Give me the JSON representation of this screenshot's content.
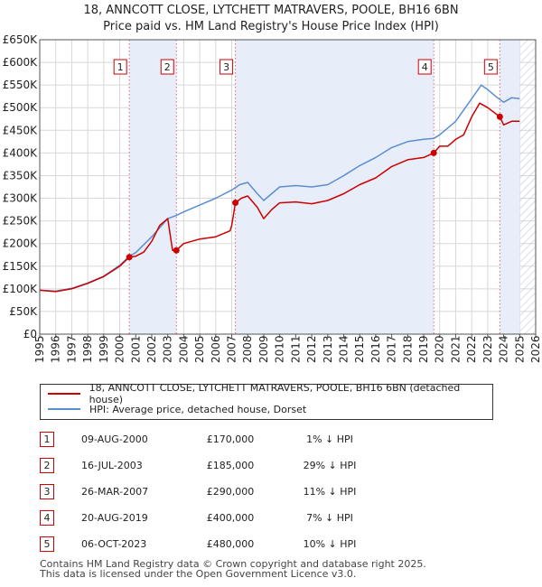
{
  "title": "18, ANNCOTT CLOSE, LYTCHETT MATRAVERS, POOLE, BH16 6BN",
  "subtitle": "Price paid vs. HM Land Registry's House Price Index (HPI)",
  "colors": {
    "property": "#cc0000",
    "hpi": "#5b8ed0",
    "shade": "#e8eef9",
    "grid": "#d8d8d8",
    "marker_line": "#e06080"
  },
  "chart_data": {
    "type": "line",
    "title": "18, ANNCOTT CLOSE, LYTCHETT MATRAVERS, POOLE, BH16 6BN",
    "subtitle": "Price paid vs. HM Land Registry's House Price Index (HPI)",
    "xlabel": "",
    "ylabel": "",
    "xlim": [
      1995,
      2026
    ],
    "ylim": [
      0,
      650000
    ],
    "y_ticks": [
      0,
      50000,
      100000,
      150000,
      200000,
      250000,
      300000,
      350000,
      400000,
      450000,
      500000,
      550000,
      600000,
      650000
    ],
    "y_tick_labels": [
      "£0",
      "£50K",
      "£100K",
      "£150K",
      "£200K",
      "£250K",
      "£300K",
      "£350K",
      "£400K",
      "£450K",
      "£500K",
      "£550K",
      "£600K",
      "£650K"
    ],
    "x_ticks": [
      1995,
      1996,
      1997,
      1998,
      1999,
      2000,
      2001,
      2002,
      2003,
      2004,
      2005,
      2006,
      2007,
      2008,
      2009,
      2010,
      2011,
      2012,
      2013,
      2014,
      2015,
      2016,
      2017,
      2018,
      2019,
      2020,
      2021,
      2022,
      2023,
      2024,
      2025,
      2026
    ],
    "x_tick_labels": [
      "1995",
      "1996",
      "1997",
      "1998",
      "1999",
      "2000",
      "2001",
      "2002",
      "2003",
      "2004",
      "2005",
      "2006",
      "2007",
      "2008",
      "2009",
      "2010",
      "2011",
      "2012",
      "2013",
      "2014",
      "2015",
      "2016",
      "2017",
      "2018",
      "2019",
      "2020",
      "2021",
      "2022",
      "2023",
      "2024",
      "2025",
      "2026"
    ],
    "grid": true,
    "shaded_spans": [
      [
        2000.6,
        2003.54
      ],
      [
        2007.23,
        2019.63
      ],
      [
        2023.76,
        2025.0
      ]
    ],
    "hatched_after": 2025.0,
    "series": [
      {
        "name": "18, ANNCOTT CLOSE, LYTCHETT MATRAVERS, POOLE, BH16 6BN (detached house)",
        "color": "#cc0000",
        "points": [
          [
            1995.0,
            97000
          ],
          [
            1996.0,
            94000
          ],
          [
            1997.0,
            100000
          ],
          [
            1998.0,
            112000
          ],
          [
            1999.0,
            127000
          ],
          [
            2000.0,
            150000
          ],
          [
            2000.6,
            170000
          ],
          [
            2001.0,
            172000
          ],
          [
            2001.5,
            181000
          ],
          [
            2002.0,
            205000
          ],
          [
            2002.5,
            240000
          ],
          [
            2003.0,
            255000
          ],
          [
            2003.3,
            185000
          ],
          [
            2003.54,
            185000
          ],
          [
            2004.0,
            200000
          ],
          [
            2005.0,
            210000
          ],
          [
            2006.0,
            215000
          ],
          [
            2006.9,
            228000
          ],
          [
            2007.0,
            240000
          ],
          [
            2007.23,
            290000
          ],
          [
            2007.6,
            300000
          ],
          [
            2008.0,
            305000
          ],
          [
            2008.6,
            280000
          ],
          [
            2009.0,
            255000
          ],
          [
            2009.5,
            275000
          ],
          [
            2010.0,
            290000
          ],
          [
            2011.0,
            292000
          ],
          [
            2012.0,
            288000
          ],
          [
            2013.0,
            295000
          ],
          [
            2014.0,
            310000
          ],
          [
            2015.0,
            330000
          ],
          [
            2016.0,
            345000
          ],
          [
            2017.0,
            370000
          ],
          [
            2018.0,
            385000
          ],
          [
            2019.0,
            390000
          ],
          [
            2019.63,
            400000
          ],
          [
            2020.0,
            415000
          ],
          [
            2020.5,
            415000
          ],
          [
            2021.0,
            430000
          ],
          [
            2021.5,
            440000
          ],
          [
            2022.0,
            480000
          ],
          [
            2022.5,
            510000
          ],
          [
            2023.0,
            500000
          ],
          [
            2023.76,
            480000
          ],
          [
            2024.0,
            462000
          ],
          [
            2024.5,
            470000
          ],
          [
            2025.0,
            470000
          ]
        ]
      },
      {
        "name": "HPI: Average price, detached house, Dorset",
        "color": "#5b8ed0",
        "points": [
          [
            1995.0,
            97000
          ],
          [
            1996.0,
            95000
          ],
          [
            1997.0,
            101000
          ],
          [
            1998.0,
            113000
          ],
          [
            1999.0,
            128000
          ],
          [
            2000.0,
            152000
          ],
          [
            2000.6,
            172000
          ],
          [
            2001.0,
            180000
          ],
          [
            2002.0,
            215000
          ],
          [
            2003.0,
            255000
          ],
          [
            2003.54,
            262000
          ],
          [
            2004.0,
            270000
          ],
          [
            2005.0,
            285000
          ],
          [
            2006.0,
            300000
          ],
          [
            2007.0,
            318000
          ],
          [
            2007.5,
            330000
          ],
          [
            2008.0,
            335000
          ],
          [
            2008.6,
            310000
          ],
          [
            2009.0,
            295000
          ],
          [
            2010.0,
            325000
          ],
          [
            2011.0,
            328000
          ],
          [
            2012.0,
            325000
          ],
          [
            2013.0,
            330000
          ],
          [
            2014.0,
            350000
          ],
          [
            2015.0,
            372000
          ],
          [
            2016.0,
            390000
          ],
          [
            2017.0,
            412000
          ],
          [
            2018.0,
            425000
          ],
          [
            2019.0,
            430000
          ],
          [
            2019.63,
            432000
          ],
          [
            2020.0,
            440000
          ],
          [
            2021.0,
            470000
          ],
          [
            2022.0,
            520000
          ],
          [
            2022.6,
            550000
          ],
          [
            2023.0,
            540000
          ],
          [
            2023.5,
            525000
          ],
          [
            2024.0,
            512000
          ],
          [
            2024.5,
            522000
          ],
          [
            2025.0,
            520000
          ]
        ]
      }
    ],
    "sales": [
      {
        "label": "1",
        "x": 2000.6,
        "price": 170000,
        "date": "09-AUG-2000",
        "price_text": "£170,000",
        "hpi_text": "1% ↓ HPI"
      },
      {
        "label": "2",
        "x": 2003.54,
        "price": 185000,
        "date": "16-JUL-2003",
        "price_text": "£185,000",
        "hpi_text": "29% ↓ HPI"
      },
      {
        "label": "3",
        "x": 2007.23,
        "price": 290000,
        "date": "26-MAR-2007",
        "price_text": "£290,000",
        "hpi_text": "11% ↓ HPI"
      },
      {
        "label": "4",
        "x": 2019.63,
        "price": 400000,
        "date": "20-AUG-2019",
        "price_text": "£400,000",
        "hpi_text": "7% ↓ HPI"
      },
      {
        "label": "5",
        "x": 2023.76,
        "price": 480000,
        "date": "06-OCT-2023",
        "price_text": "£480,000",
        "hpi_text": "10% ↓ HPI"
      }
    ]
  },
  "legend": {
    "property": "18, ANNCOTT CLOSE, LYTCHETT MATRAVERS, POOLE, BH16 6BN (detached house)",
    "hpi": "HPI: Average price, detached house, Dorset"
  },
  "footer": {
    "line1": "Contains HM Land Registry data © Crown copyright and database right 2025.",
    "line2": "This data is licensed under the Open Government Licence v3.0."
  }
}
